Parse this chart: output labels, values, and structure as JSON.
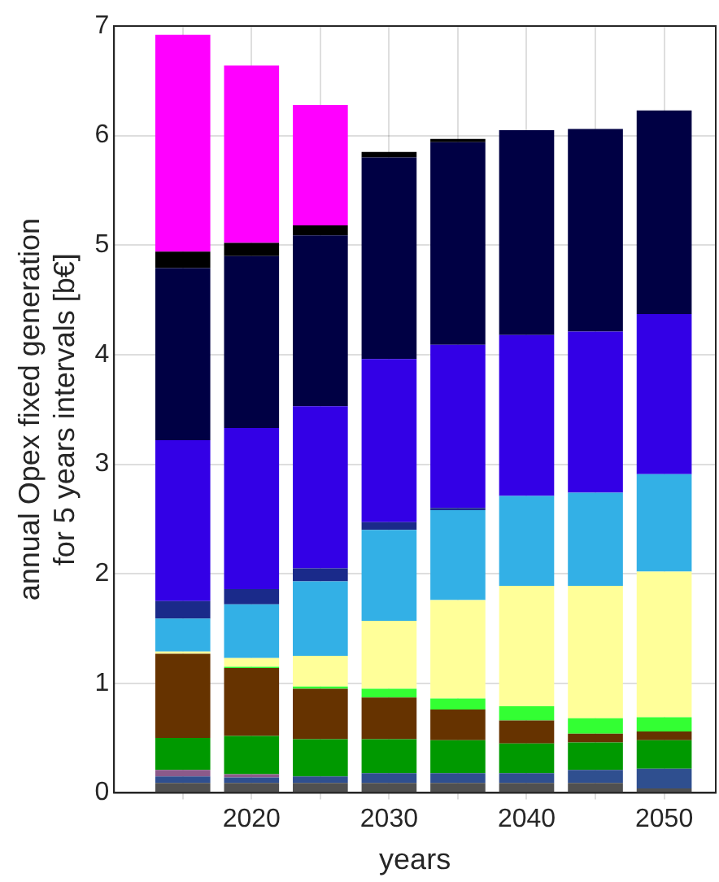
{
  "chart_data": {
    "type": "bar",
    "stacked": true,
    "xlabel": "years",
    "ylabel": "annual Opex fixed generation\nfor 5 years intervals [b€]",
    "x": [
      2015,
      2020,
      2025,
      2030,
      2035,
      2040,
      2045,
      2050
    ],
    "xlim": [
      2010,
      2053.75
    ],
    "xticks": [
      {
        "value": 2015,
        "label": null
      },
      2020,
      {
        "value": 2025,
        "label": null
      },
      2030,
      {
        "value": 2035,
        "label": null
      },
      2040,
      {
        "value": 2045,
        "label": null
      },
      2050
    ],
    "ylim": [
      0,
      7
    ],
    "yticks": [
      0,
      1,
      2,
      3,
      4,
      5,
      6,
      7
    ],
    "grid": true,
    "legend": false,
    "series": [
      {
        "color": "#505050",
        "values": [
          0.09,
          0.09,
          0.09,
          0.09,
          0.09,
          0.09,
          0.09,
          0.04
        ]
      },
      {
        "color": "#2f4f8f",
        "values": [
          0.06,
          0.05,
          0.06,
          0.09,
          0.09,
          0.09,
          0.12,
          0.18
        ]
      },
      {
        "color": "#8b5a8a",
        "values": [
          0.06,
          0.03,
          0,
          0,
          0,
          0,
          0,
          0
        ]
      },
      {
        "color": "#009900",
        "values": [
          0.29,
          0.35,
          0.34,
          0.31,
          0.3,
          0.27,
          0.25,
          0.26
        ]
      },
      {
        "color": "#663300",
        "values": [
          0.77,
          0.62,
          0.46,
          0.38,
          0.28,
          0.21,
          0.08,
          0.08
        ]
      },
      {
        "color": "#33ff33",
        "values": [
          0,
          0.01,
          0.02,
          0.08,
          0.1,
          0.13,
          0.14,
          0.13
        ]
      },
      {
        "color": "#ffff99",
        "values": [
          0.02,
          0.08,
          0.28,
          0.62,
          0.9,
          1.1,
          1.21,
          1.33
        ]
      },
      {
        "color": "#33b0e6",
        "values": [
          0.3,
          0.49,
          0.68,
          0.83,
          0.82,
          0.82,
          0.85,
          0.89
        ]
      },
      {
        "color": "#1a2a8a",
        "values": [
          0.16,
          0.14,
          0.12,
          0.07,
          0.02,
          0,
          0,
          0
        ]
      },
      {
        "color": "#3300e6",
        "values": [
          1.47,
          1.47,
          1.48,
          1.49,
          1.49,
          1.47,
          1.47,
          1.46
        ]
      },
      {
        "color": "#000044",
        "values": [
          1.57,
          1.57,
          1.56,
          1.84,
          1.85,
          1.87,
          1.85,
          1.86
        ]
      },
      {
        "color": "#000000",
        "values": [
          0.15,
          0.12,
          0.09,
          0.05,
          0.03,
          0,
          0,
          0
        ]
      },
      {
        "color": "#ff00ff",
        "values": [
          1.98,
          1.62,
          1.1,
          0,
          0,
          0,
          0,
          0
        ]
      }
    ]
  }
}
